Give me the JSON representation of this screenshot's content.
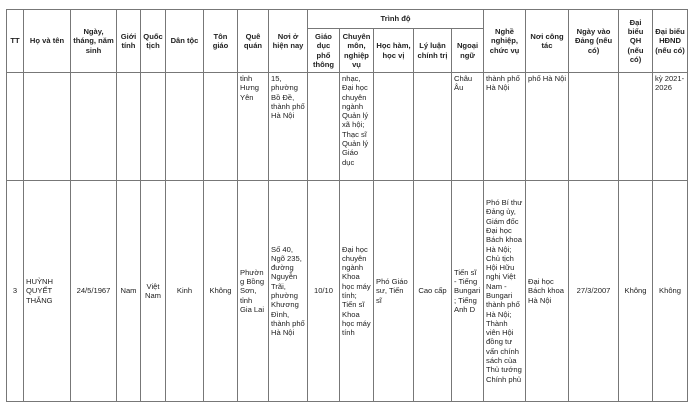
{
  "headers": {
    "tt": "TT",
    "name": "Họ và tên",
    "dob": "Ngày, tháng, năm sinh",
    "gender": "Giới tính",
    "nationality": "Quốc tịch",
    "ethnicity": "Dân tộc",
    "religion": "Tôn giáo",
    "hometown": "Quê quán",
    "residence": "Nơi ở hiện nay",
    "education": "Trình độ",
    "general": "Giáo dục phổ thông",
    "specialty": "Chuyên môn, nghiệp vụ",
    "degree": "Học hàm, học vị",
    "political": "Lý luận chính trị",
    "language": "Ngoại ngữ",
    "occupation": "Nghề nghiệp, chức vụ",
    "workplace": "Nơi công tác",
    "party": "Ngày vào Đảng (nếu có)",
    "na_delegate": "Đại biểu QH (nếu có)",
    "council_delegate": "Đại biểu HĐND (nếu có)"
  },
  "rows": [
    {
      "tt": "",
      "name": "",
      "dob": "",
      "gender": "",
      "nationality": "",
      "ethnicity": "",
      "religion": "",
      "hometown": "tỉnh Hưng Yên",
      "residence": "15, phường Bồ Đề, thành phố Hà Nội",
      "general": "",
      "specialty": "nhạc, Đại học chuyên ngành Quản lý xã hội; Thạc sĩ Quản lý Giáo dục",
      "degree": "",
      "political": "",
      "language": "Châu Âu",
      "occupation": "thành phố Hà Nội",
      "workplace": "phố Hà Nội",
      "party": "",
      "na_delegate": "",
      "council_delegate": "kỳ 2021-2026"
    },
    {
      "tt": "3",
      "name": "HUỲNH QUYẾT THẮNG",
      "dob": "24/5/1967",
      "gender": "Nam",
      "nationality": "Việt Nam",
      "ethnicity": "Kinh",
      "religion": "Không",
      "hometown": "Phường Bồng Sơn, tỉnh Gia Lai",
      "residence": "Số 40, Ngõ 235, đường Nguyễn Trãi, phường Khương Đình, thành phố Hà Nội",
      "general": "10/10",
      "specialty": "Đại học chuyên ngành Khoa học máy tính; Tiến sĩ Khoa học máy tính",
      "degree": "Phó Giáo sư, Tiến sĩ",
      "political": "Cao cấp",
      "language": "Tiến sĩ - Tiếng Bungari; Tiếng Anh D",
      "occupation": "Phó Bí thư Đảng ủy, Giám đốc Đại học Bách khoa Hà Nội; Chủ tịch Hội Hữu nghị Việt Nam - Bungari thành phố Hà Nội; Thành viên Hội đồng tư vấn chính sách của Thủ tướng Chính phủ",
      "workplace": "Đại học Bách khoa Hà Nội",
      "party": "27/3/2007",
      "na_delegate": "Không",
      "council_delegate": "Không"
    }
  ]
}
